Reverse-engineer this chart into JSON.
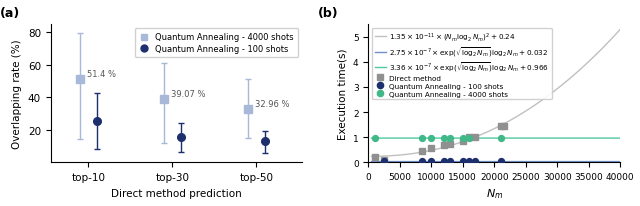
{
  "panel_a": {
    "categories": [
      "top-10",
      "top-30",
      "top-50"
    ],
    "qa4000_means": [
      51.4,
      39.07,
      32.96
    ],
    "qa4000_yerr_low": [
      37,
      27,
      18
    ],
    "qa4000_yerr_high": [
      28,
      22,
      18
    ],
    "qa100_means": [
      25.5,
      15.5,
      13.0
    ],
    "qa100_yerr_low": [
      17,
      9,
      7
    ],
    "qa100_yerr_high": [
      17,
      9,
      6
    ],
    "labels": [
      "51.4 %",
      "39.07 %",
      "32.96 %"
    ],
    "ylabel": "Overlapping rate (%)",
    "xlabel": "Direct method prediction",
    "ylim": [
      0,
      85
    ],
    "yticks": [
      20,
      40,
      60,
      80
    ],
    "color_4000": "#a8b8d8",
    "color_100": "#1e2f6e",
    "ecolor_4000": "#a8b8d8",
    "ecolor_100": "#3040a0"
  },
  "panel_b": {
    "nm_data": [
      1000,
      2500,
      8500,
      10000,
      12000,
      13000,
      15000,
      16000,
      17000,
      21000,
      21500
    ],
    "direct_means": [
      0.22,
      0.1,
      0.45,
      0.58,
      0.68,
      0.72,
      0.85,
      1.02,
      1.02,
      1.45,
      1.45
    ],
    "direct_yerr": [
      0.04,
      0.03,
      0.04,
      0.04,
      0.04,
      0.04,
      0.04,
      0.04,
      0.04,
      0.06,
      0.06
    ],
    "qa100_nm": [
      2500,
      8500,
      10000,
      12000,
      13000,
      15000,
      16000,
      17000,
      21000
    ],
    "qa100_vals": [
      0.07,
      0.05,
      0.05,
      0.05,
      0.05,
      0.05,
      0.05,
      0.05,
      0.05
    ],
    "qa4000_nm": [
      1000,
      8500,
      10000,
      12000,
      13000,
      15000,
      16000,
      21000
    ],
    "qa4000_vals": [
      0.97,
      0.97,
      0.97,
      0.97,
      0.97,
      0.97,
      0.97,
      0.97
    ],
    "curve_color_gray": "#c0c0c0",
    "curve_color_blue": "#7090c8",
    "curve_color_teal": "#50c8a0",
    "direct_color": "#909090",
    "qa100_color": "#1e2f6e",
    "qa4000_color": "#40b888",
    "xlabel": "$N_m$",
    "ylabel": "Execution time(s)",
    "xlim": [
      0,
      40000
    ],
    "ylim": [
      0,
      5.5
    ],
    "yticks": [
      0,
      1,
      2,
      3,
      4,
      5
    ],
    "xticks": [
      0,
      5000,
      10000,
      15000,
      20000,
      25000,
      30000,
      35000,
      40000
    ]
  }
}
